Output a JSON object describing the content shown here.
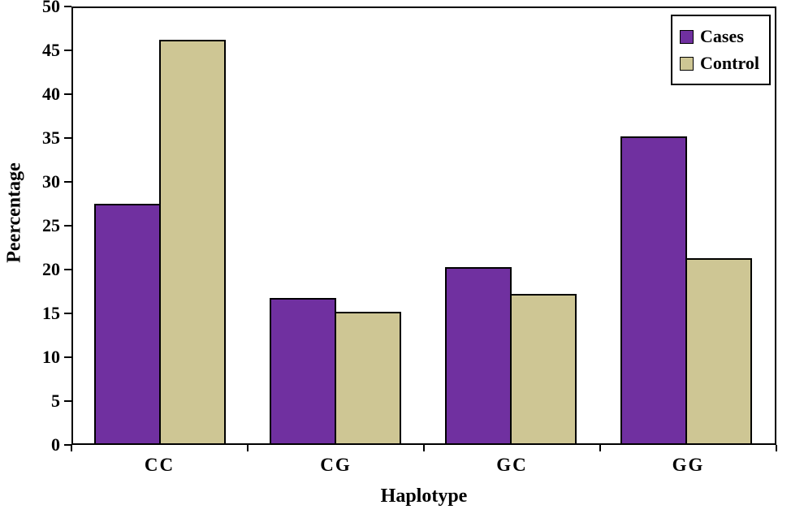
{
  "figure": {
    "background": "#ffffff",
    "axis_color": "#000000"
  },
  "chart_data": {
    "type": "bar",
    "title": "",
    "xlabel": "Haplotype",
    "ylabel": "Peercentage",
    "categories": [
      "CC",
      "CG",
      "GC",
      "GG"
    ],
    "series": [
      {
        "name": "Cases",
        "color": "#7030a0",
        "values": [
          27.5,
          16.7,
          20.2,
          35.3
        ]
      },
      {
        "name": "Control",
        "color": "#cec694",
        "values": [
          46.4,
          15.1,
          17.2,
          21.3
        ]
      }
    ],
    "ylim": [
      0,
      50
    ],
    "ytick_step": 5,
    "yticks": [
      0,
      5,
      10,
      15,
      20,
      25,
      30,
      35,
      40,
      45,
      50
    ],
    "grid": false,
    "legend_position": "top-right",
    "bar_border_color": "#000000"
  }
}
